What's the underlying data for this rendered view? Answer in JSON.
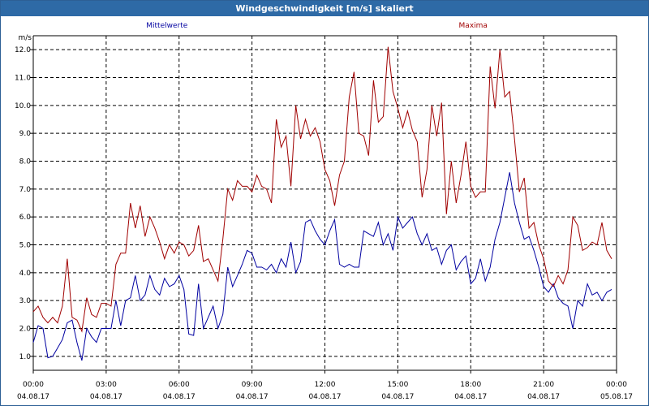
{
  "window": {
    "title": "Windgeschwindigkeit [m/s] skaliert"
  },
  "chart_data": {
    "type": "line",
    "unit_label": "m/s",
    "ylim": [
      0.5,
      12.5
    ],
    "y_ticks": [
      "1.0",
      "2.0",
      "3.0",
      "4.0",
      "5.0",
      "6.0",
      "7.0",
      "8.0",
      "9.0",
      "10.0",
      "11.0",
      "12.0"
    ],
    "x_ticks": [
      {
        "time": "00:00",
        "date": "04.08.17"
      },
      {
        "time": "03:00",
        "date": "04.08.17"
      },
      {
        "time": "06:00",
        "date": "04.08.17"
      },
      {
        "time": "09:00",
        "date": "04.08.17"
      },
      {
        "time": "12:00",
        "date": "04.08.17"
      },
      {
        "time": "15:00",
        "date": "04.08.17"
      },
      {
        "time": "18:00",
        "date": "04.08.17"
      },
      {
        "time": "21:00",
        "date": "04.08.17"
      },
      {
        "time": "00:00",
        "date": "05.08.17"
      }
    ],
    "grid": true,
    "x_hours": [
      0,
      0.2,
      0.4,
      0.6,
      0.8,
      1.0,
      1.2,
      1.4,
      1.6,
      1.8,
      2.0,
      2.2,
      2.4,
      2.6,
      2.8,
      3.0,
      3.2,
      3.4,
      3.6,
      3.8,
      4.0,
      4.2,
      4.4,
      4.6,
      4.8,
      5.0,
      5.2,
      5.4,
      5.6,
      5.8,
      6.0,
      6.2,
      6.4,
      6.6,
      6.8,
      7.0,
      7.2,
      7.4,
      7.6,
      7.8,
      8.0,
      8.2,
      8.4,
      8.6,
      8.8,
      9.0,
      9.2,
      9.4,
      9.6,
      9.8,
      10.0,
      10.2,
      10.4,
      10.6,
      10.8,
      11.0,
      11.2,
      11.4,
      11.6,
      11.8,
      12.0,
      12.2,
      12.4,
      12.6,
      12.8,
      13.0,
      13.2,
      13.4,
      13.6,
      13.8,
      14.0,
      14.2,
      14.4,
      14.6,
      14.8,
      15.0,
      15.2,
      15.4,
      15.6,
      15.8,
      16.0,
      16.2,
      16.4,
      16.6,
      16.8,
      17.0,
      17.2,
      17.4,
      17.6,
      17.8,
      18.0,
      18.2,
      18.4,
      18.6,
      18.8,
      19.0,
      19.2,
      19.4,
      19.6,
      19.8,
      20.0,
      20.2,
      20.4,
      20.6,
      20.8,
      21.0,
      21.2,
      21.4,
      21.6,
      21.8,
      22.0,
      22.2,
      22.4,
      22.6,
      22.8,
      23.0,
      23.2,
      23.4,
      23.6,
      23.8
    ],
    "series": [
      {
        "name": "Mittelwerte",
        "color": "#0000a0",
        "values": [
          1.5,
          2.1,
          2.0,
          0.95,
          1.0,
          1.3,
          1.6,
          2.2,
          2.3,
          1.5,
          0.85,
          2.0,
          1.7,
          1.5,
          2.0,
          2.0,
          2.0,
          3.0,
          2.1,
          3.0,
          3.1,
          3.9,
          3.0,
          3.2,
          3.9,
          3.4,
          3.2,
          3.8,
          3.5,
          3.6,
          3.9,
          3.4,
          1.8,
          1.75,
          3.6,
          2.0,
          2.4,
          2.8,
          2.0,
          2.5,
          4.2,
          3.5,
          3.9,
          4.3,
          4.8,
          4.7,
          4.2,
          4.2,
          4.1,
          4.3,
          4.0,
          4.5,
          4.2,
          5.1,
          4.0,
          4.4,
          5.8,
          5.9,
          5.5,
          5.2,
          5.0,
          5.5,
          5.9,
          4.3,
          4.2,
          4.3,
          4.2,
          4.2,
          5.5,
          5.4,
          5.3,
          5.8,
          5.0,
          5.4,
          4.8,
          6.0,
          5.6,
          5.8,
          6.0,
          5.4,
          5.0,
          5.4,
          4.8,
          4.9,
          4.3,
          4.8,
          5.0,
          4.1,
          4.4,
          4.6,
          3.6,
          3.8,
          4.5,
          3.7,
          4.2,
          5.2,
          5.8,
          6.7,
          7.6,
          6.5,
          5.8,
          5.2,
          5.3,
          4.8,
          4.2,
          3.5,
          3.3,
          3.6,
          3.1,
          2.9,
          2.8,
          2.0,
          3.0,
          2.8,
          3.6,
          3.2,
          3.3,
          3.0,
          3.3,
          3.4
        ]
      },
      {
        "name": "Maxima",
        "color": "#a00000",
        "values": [
          2.6,
          2.8,
          2.4,
          2.2,
          2.4,
          2.2,
          2.8,
          4.5,
          2.4,
          2.3,
          1.9,
          3.1,
          2.5,
          2.4,
          2.9,
          2.9,
          2.8,
          4.3,
          4.7,
          4.7,
          6.5,
          5.6,
          6.4,
          5.3,
          6.0,
          5.6,
          5.1,
          4.5,
          5.0,
          4.7,
          5.1,
          5.0,
          4.6,
          4.8,
          5.7,
          4.4,
          4.5,
          4.1,
          3.7,
          5.2,
          7.0,
          6.6,
          7.3,
          7.1,
          7.1,
          6.9,
          7.5,
          7.1,
          7.0,
          6.5,
          9.5,
          8.5,
          8.9,
          7.1,
          10.0,
          8.8,
          9.5,
          8.9,
          9.2,
          8.7,
          7.7,
          7.3,
          6.4,
          7.5,
          8.0,
          10.3,
          11.2,
          9.0,
          8.9,
          8.2,
          10.9,
          9.4,
          9.6,
          12.1,
          10.5,
          9.9,
          9.2,
          9.8,
          9.1,
          8.7,
          6.7,
          7.7,
          10.0,
          8.9,
          10.1,
          6.1,
          8.0,
          6.5,
          7.5,
          8.7,
          7.1,
          6.7,
          6.9,
          6.9,
          11.4,
          9.9,
          12.0,
          10.3,
          10.5,
          8.8,
          6.9,
          7.4,
          5.6,
          5.8,
          5.0,
          4.5,
          3.7,
          3.5,
          3.9,
          3.6,
          4.1,
          6.0,
          5.7,
          4.8,
          4.9,
          5.1,
          5.0,
          5.8,
          4.8,
          4.5
        ]
      }
    ]
  }
}
